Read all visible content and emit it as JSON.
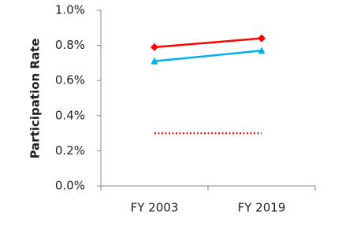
{
  "chart_data": {
    "type": "line",
    "y_label": "Participation Rate",
    "categories": [
      "FY 2003",
      "FY 2019"
    ],
    "series": [
      {
        "color": "#ff0000",
        "values": [
          0.79,
          0.84
        ],
        "marker": "diamond",
        "line_style": "solid"
      },
      {
        "color": "#00b0f0",
        "values": [
          0.71,
          0.77
        ],
        "marker": "triangle",
        "line_style": "solid"
      },
      {
        "color": "#e02020",
        "values": [
          0.3,
          0.3
        ],
        "marker": "none",
        "line_style": "dotted"
      }
    ],
    "ylim": [
      0,
      1.0
    ],
    "yticks": [
      {
        "value": 0,
        "label": "0.0%"
      },
      {
        "value": 0.2,
        "label": "0.2%"
      },
      {
        "value": 0.4,
        "label": "0.4%"
      },
      {
        "value": 0.6,
        "label": "0.6%"
      },
      {
        "value": 0.8,
        "label": "0.8%"
      },
      {
        "value": 1.0,
        "label": "1.0%"
      }
    ],
    "grid": false
  }
}
